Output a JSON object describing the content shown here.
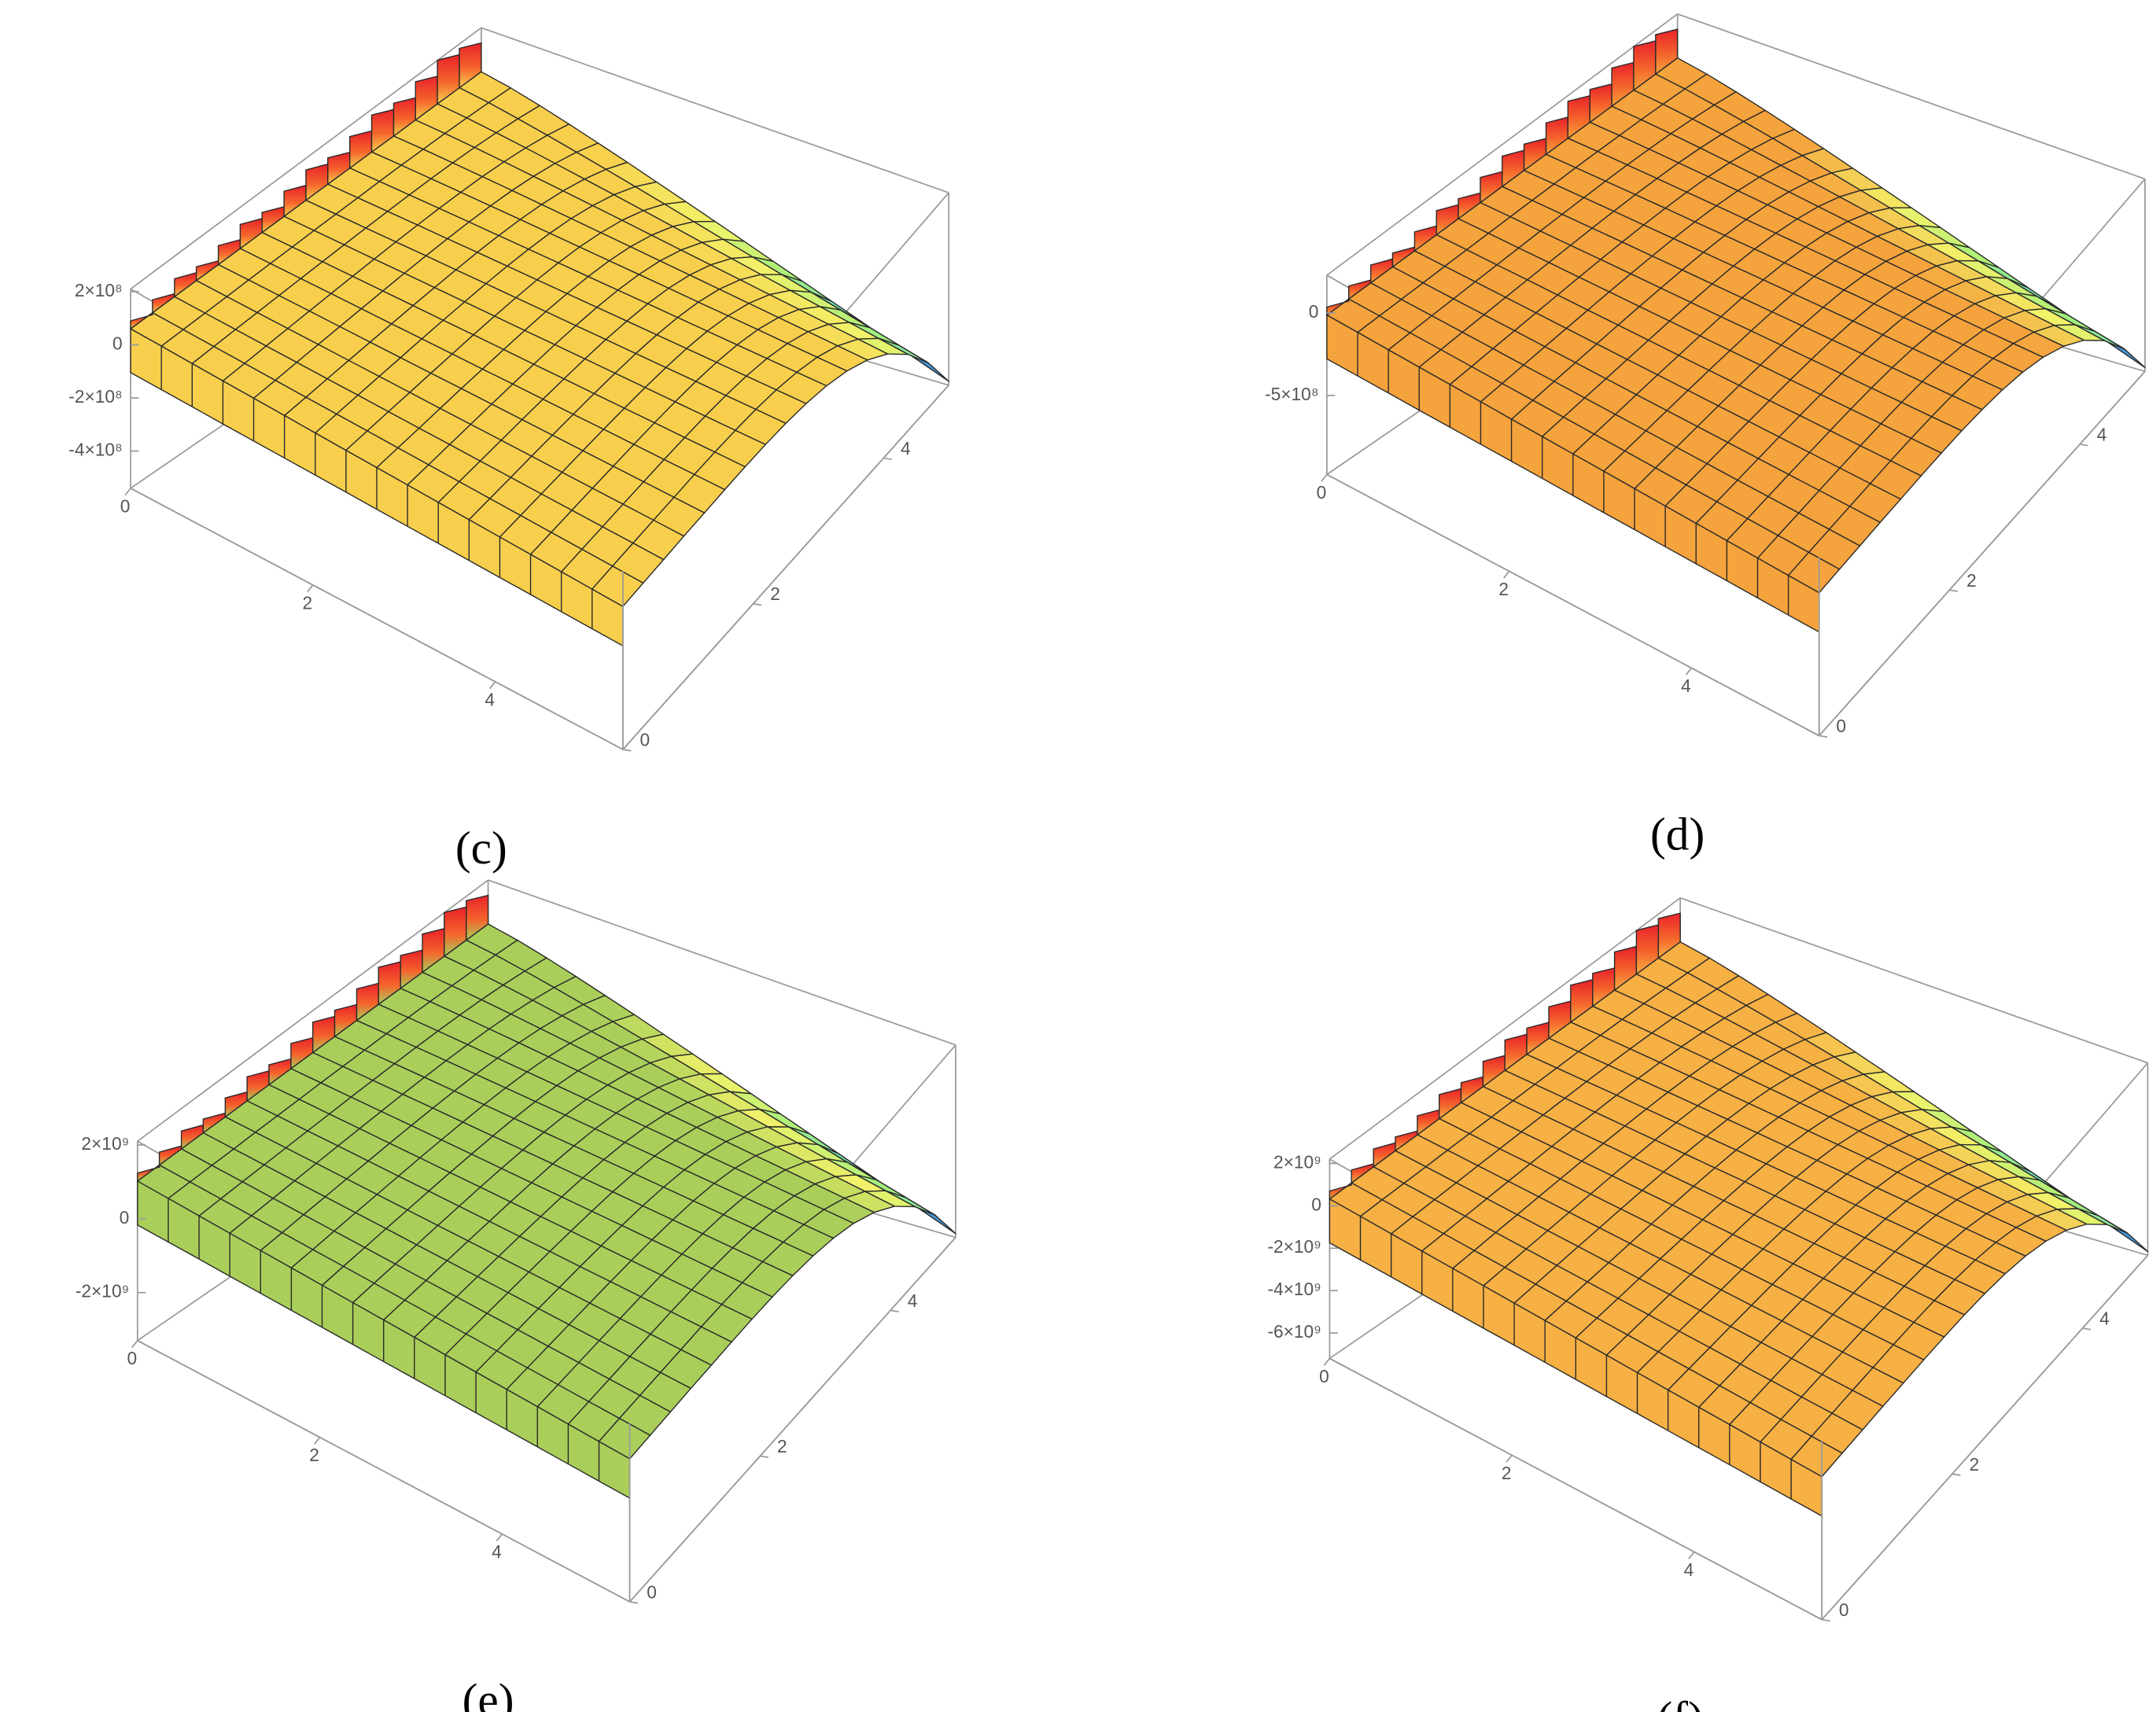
{
  "chart_data": [
    {
      "type": "surface",
      "label": "(c)",
      "color": "#f8cf4c",
      "xlim": [
        0,
        5.4
      ],
      "ylim": [
        0,
        5
      ],
      "xticks": [
        0,
        2,
        4
      ],
      "yticks": [
        0,
        2,
        4
      ],
      "zlim": [
        -540000000,
        210000000
      ],
      "zticks": [
        {
          "value": 200000000,
          "label": "2×10⁸"
        },
        0,
        {
          "value": -200000000,
          "label": "-2×10⁸"
        },
        {
          "value": -400000000,
          "label": "-4×10⁸"
        }
      ]
    },
    {
      "type": "surface",
      "label": "(d)",
      "color": "#f5a33c",
      "xlim": [
        0,
        5.4
      ],
      "ylim": [
        0,
        5
      ],
      "xticks": [
        0,
        2,
        4
      ],
      "yticks": [
        0,
        2,
        4
      ],
      "zlim": [
        -980000000,
        230000000
      ],
      "zticks": [
        0,
        {
          "value": -500000000,
          "label": "-5×10⁸"
        }
      ]
    },
    {
      "type": "surface",
      "label": "(e)",
      "color": "#a9cf5a",
      "xlim": [
        0,
        5.4
      ],
      "ylim": [
        0,
        5
      ],
      "xticks": [
        0,
        2,
        4
      ],
      "yticks": [
        0,
        2,
        4
      ],
      "zlim": [
        -3300000000,
        2100000000
      ],
      "zticks": [
        {
          "value": 2000000000,
          "label": "2×10⁹"
        },
        0,
        {
          "value": -2000000000,
          "label": "-2×10⁹"
        }
      ]
    },
    {
      "type": "surface",
      "label": "(f)",
      "color": "#f6b043",
      "xlim": [
        0,
        5.4
      ],
      "ylim": [
        0,
        5
      ],
      "xticks": [
        0,
        2,
        4
      ],
      "yticks": [
        0,
        2,
        4
      ],
      "zlim": [
        -7200000000,
        2200000000
      ],
      "zticks": [
        {
          "value": 2000000000,
          "label": "2×10⁹"
        },
        0,
        {
          "value": -2000000000,
          "label": "-2×10⁹"
        },
        {
          "value": -4000000000,
          "label": "-4×10⁹"
        },
        {
          "value": -6000000000,
          "label": "-6×10⁹"
        }
      ]
    }
  ]
}
